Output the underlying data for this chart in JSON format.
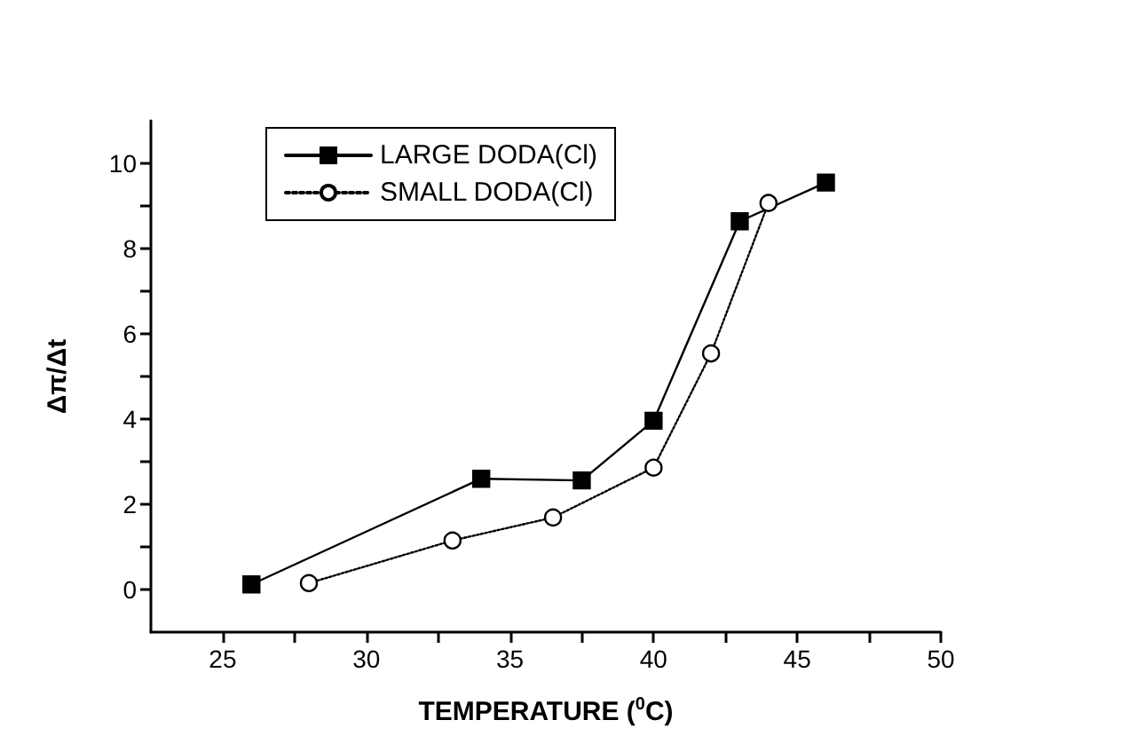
{
  "chart_data": {
    "type": "line",
    "xlabel": "TEMPERATURE ($^{0}$C)",
    "ylabel": "Δπ/Δt",
    "xlim": [
      22.5,
      50
    ],
    "xticks": [
      25,
      {
        "value": 27.5,
        "label": null
      },
      30,
      {
        "value": 32.5,
        "label": null
      },
      35,
      {
        "value": 37.5,
        "label": null
      },
      40,
      {
        "value": 42.5,
        "label": null
      },
      45,
      {
        "value": 47.5,
        "label": null
      },
      50
    ],
    "ylim": [
      -1,
      11
    ],
    "yticks": [
      0,
      {
        "value": 1,
        "label": null
      },
      2,
      {
        "value": 3,
        "label": null
      },
      4,
      {
        "value": 5,
        "label": null
      },
      6,
      {
        "value": 7,
        "label": null
      },
      8,
      {
        "value": 9,
        "label": null
      },
      10
    ],
    "grid": false,
    "legend": "top left",
    "series": [
      {
        "name": "LARGE DODA(Cl)",
        "color": "#000000",
        "marker": "square",
        "line_style": "solid",
        "x": [
          26,
          34,
          37.5,
          40,
          43,
          46
        ],
        "values": [
          0.12,
          2.6,
          2.56,
          3.96,
          8.64,
          9.55
        ]
      },
      {
        "name": "SMALL DODA(Cl)",
        "color": "#000000",
        "marker": "circle",
        "line_style": "dotted",
        "x": [
          28,
          33,
          36.5,
          40,
          42,
          44
        ],
        "values": [
          0.15,
          1.15,
          1.69,
          2.86,
          5.54,
          9.07
        ]
      }
    ]
  }
}
